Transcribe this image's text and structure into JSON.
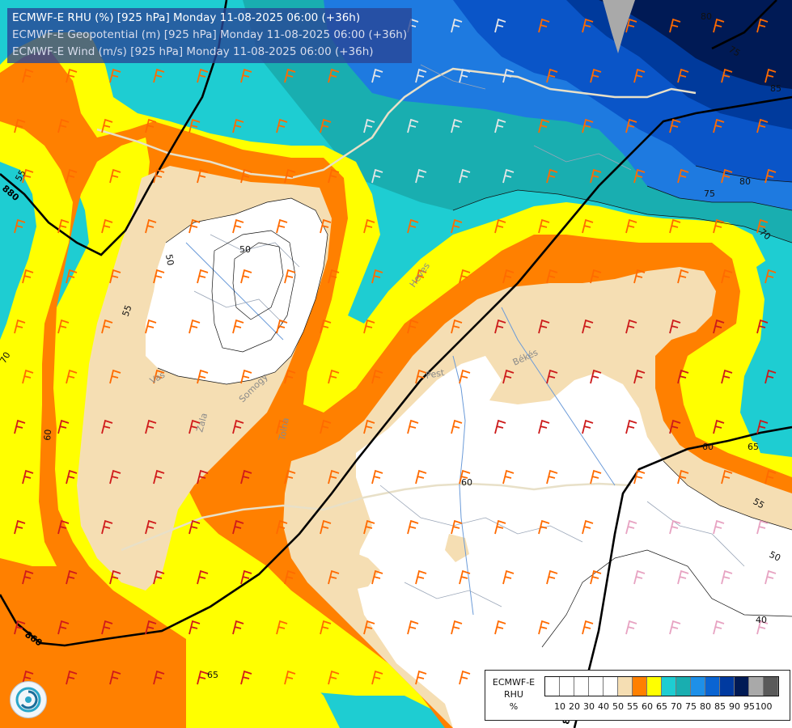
{
  "header": {
    "lines": [
      "ECMWF-E RHU (%) [925 hPa] Monday 11-08-2025 06:00 (+36h)",
      "ECMWF-E Geopotential (m) [925 hPa] Monday 11-08-2025 06:00 (+36h)",
      "ECMWF-E Wind (m/s) [925 hPa] Monday 11-08-2025 06:00 (+36h)"
    ]
  },
  "legend": {
    "model": "ECMWF-E",
    "var": "RHU",
    "unit": "%",
    "ticks": [
      "10",
      "20",
      "30",
      "40",
      "50",
      "55",
      "60",
      "65",
      "70",
      "75",
      "80",
      "85",
      "90",
      "95",
      "100"
    ],
    "colors": [
      "#ffffff",
      "#ffffff",
      "#ffffff",
      "#ffffff",
      "#ffffff",
      "#f5deb3",
      "#ff8000",
      "#ffff00",
      "#1ecdd2",
      "#19aeb0",
      "#1e90e8",
      "#0a64d2",
      "#003aa0",
      "#001a55",
      "#a9a9a9",
      "#5a5a5a"
    ]
  },
  "contour_labels": {
    "rhu": [
      "50",
      "55",
      "60",
      "65",
      "70",
      "75",
      "80",
      "85",
      "50",
      "55",
      "60",
      "65",
      "70",
      "75",
      "80",
      "40",
      "50",
      "55",
      "60"
    ],
    "geopotential": [
      "880",
      "860",
      "850"
    ]
  },
  "place_labels": [
    "Heves",
    "Pest",
    "Békés",
    "Vas",
    "Zala",
    "Somogy",
    "Tolna"
  ]
}
